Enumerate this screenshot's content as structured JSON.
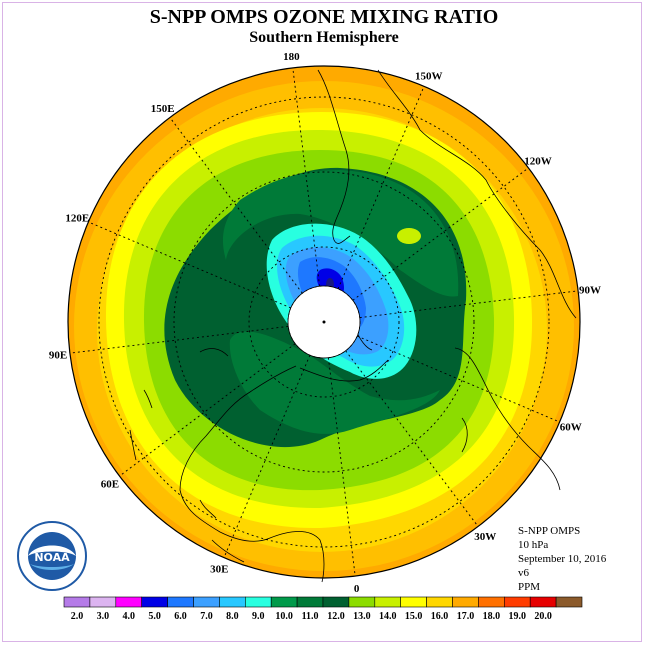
{
  "title": "S-NPP OMPS OZONE MIXING RATIO",
  "subtitle": "Southern Hemisphere",
  "longitude_labels": [
    {
      "text": "90W",
      "lon": -90
    },
    {
      "text": "60W",
      "lon": -60
    },
    {
      "text": "30W",
      "lon": -30
    },
    {
      "text": "0",
      "lon": 0
    },
    {
      "text": "30E",
      "lon": 30
    },
    {
      "text": "60E",
      "lon": 60
    },
    {
      "text": "90E",
      "lon": 90
    },
    {
      "text": "120E",
      "lon": 120
    },
    {
      "text": "150E",
      "lon": 150
    },
    {
      "text": "180",
      "lon": 180
    },
    {
      "text": "150W",
      "lon": -150
    },
    {
      "text": "120W",
      "lon": -120
    }
  ],
  "info": {
    "instrument": "S-NPP OMPS",
    "level": "10 hPa",
    "date": "September 10, 2016",
    "version": "v6",
    "units": "PPM"
  },
  "logo": {
    "text": "NOAA"
  },
  "colorbar": {
    "ticks": [
      "2.0",
      "3.0",
      "4.0",
      "5.0",
      "6.0",
      "7.0",
      "8.0",
      "9.0",
      "10.0",
      "11.0",
      "12.0",
      "13.0",
      "14.0",
      "15.0",
      "16.0",
      "17.0",
      "18.0",
      "19.0",
      "20.0"
    ],
    "colors": [
      "#b57be8",
      "#dcb4f0",
      "#ff00ff",
      "#0000e6",
      "#1e78ff",
      "#3ca0ff",
      "#28c8ff",
      "#28ffe0",
      "#009a4a",
      "#007a38",
      "#006030",
      "#8cdc00",
      "#c8f000",
      "#ffff00",
      "#ffd700",
      "#ffaa00",
      "#ff7000",
      "#ff3c00",
      "#e60000",
      "#8b5a2b"
    ]
  }
}
